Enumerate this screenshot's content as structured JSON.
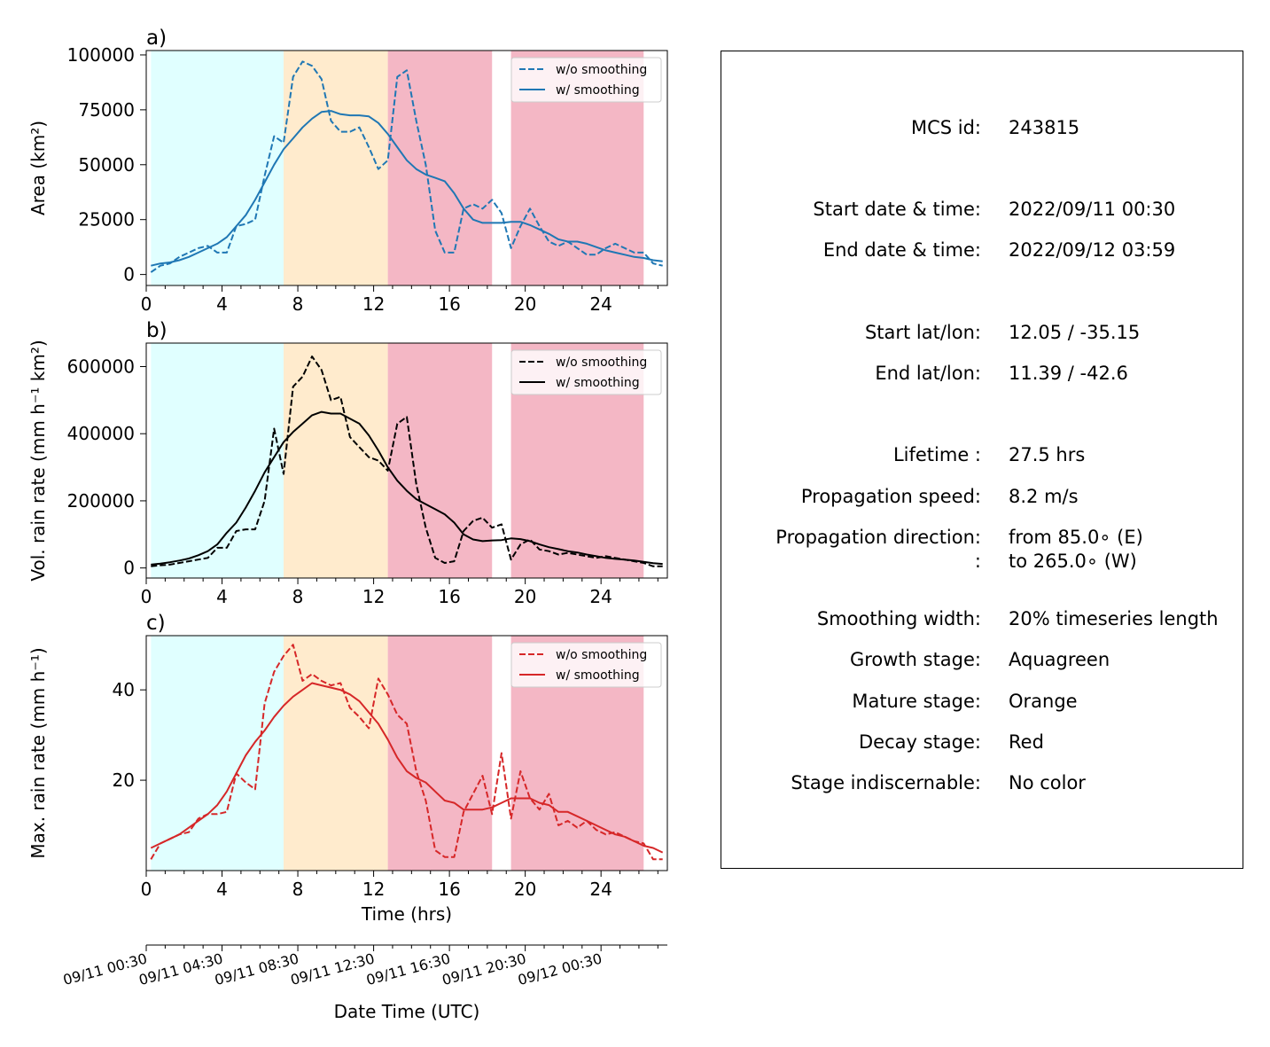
{
  "colors": {
    "growth": "#e0ffff",
    "mature": "#ffebcd",
    "decay": "#f4b7c5",
    "blue": "#1f77b4",
    "black": "#000000",
    "red": "#d62728"
  },
  "chart_data": [
    {
      "type": "line",
      "panel_label": "a)",
      "xlabel": "",
      "ylabel": "Area  (km²)",
      "xlim": [
        0,
        27.5
      ],
      "ylim": [
        -5000,
        102000
      ],
      "xticks": [
        0,
        4,
        8,
        12,
        16,
        20,
        24
      ],
      "yticks": [
        0,
        25000,
        50000,
        75000,
        100000
      ],
      "stages": [
        {
          "stage": "growth",
          "x0": 0.25,
          "x1": 7.25
        },
        {
          "stage": "mature",
          "x0": 7.25,
          "x1": 12.75
        },
        {
          "stage": "decay",
          "x0": 12.75,
          "x1": 18.25
        },
        {
          "stage": "decay",
          "x0": 19.25,
          "x1": 26.25
        }
      ],
      "legend_loc": "upper right",
      "series": [
        {
          "name": "w/o smoothing",
          "style": "dashed",
          "color": "#1f77b4",
          "x": [
            0.25,
            0.75,
            1.25,
            1.75,
            2.25,
            2.75,
            3.25,
            3.75,
            4.25,
            4.75,
            5.25,
            5.75,
            6.25,
            6.75,
            7.25,
            7.75,
            8.25,
            8.75,
            9.25,
            9.75,
            10.25,
            10.75,
            11.25,
            11.75,
            12.25,
            12.75,
            13.25,
            13.75,
            14.25,
            14.75,
            15.25,
            15.75,
            16.25,
            16.75,
            17.25,
            17.75,
            18.25,
            18.75,
            19.25,
            19.75,
            20.25,
            20.75,
            21.25,
            21.75,
            22.25,
            22.75,
            23.25,
            23.75,
            24.25,
            24.75,
            25.25,
            25.75,
            26.25,
            26.75,
            27.25
          ],
          "y": [
            1000,
            4000,
            5000,
            8000,
            10000,
            12000,
            13000,
            10000,
            10000,
            22000,
            23000,
            25000,
            45000,
            63000,
            60000,
            90000,
            97000,
            95000,
            89000,
            70000,
            65000,
            65000,
            67000,
            58000,
            48000,
            52000,
            90000,
            93000,
            70000,
            50000,
            20000,
            10000,
            10000,
            30000,
            32000,
            30000,
            34000,
            28000,
            12000,
            22000,
            30000,
            22000,
            15000,
            13000,
            15000,
            12000,
            9000,
            9000,
            12000,
            14000,
            12000,
            10000,
            10000,
            5000,
            4000
          ]
        },
        {
          "name": "w/ smoothing",
          "style": "solid",
          "color": "#1f77b4",
          "x": [
            0.25,
            0.75,
            1.25,
            1.75,
            2.25,
            2.75,
            3.25,
            3.75,
            4.25,
            4.75,
            5.25,
            5.75,
            6.25,
            6.75,
            7.25,
            7.75,
            8.25,
            8.75,
            9.25,
            9.75,
            10.25,
            10.75,
            11.25,
            11.75,
            12.25,
            12.75,
            13.25,
            13.75,
            14.25,
            14.75,
            15.25,
            15.75,
            16.25,
            16.75,
            17.25,
            17.75,
            18.25,
            18.75,
            19.25,
            19.75,
            20.25,
            20.75,
            21.25,
            21.75,
            22.25,
            22.75,
            23.25,
            23.75,
            24.25,
            24.75,
            25.25,
            25.75,
            26.25,
            26.75,
            27.25
          ],
          "y": [
            4000,
            5000,
            5500,
            6500,
            8000,
            10000,
            12000,
            14000,
            17000,
            22000,
            27000,
            34000,
            42000,
            50000,
            57000,
            62000,
            67000,
            71000,
            74000,
            74500,
            73000,
            72500,
            72500,
            72000,
            69000,
            64000,
            58000,
            52000,
            48000,
            45500,
            44000,
            42500,
            37000,
            30000,
            25000,
            23500,
            23500,
            23500,
            24000,
            24000,
            22500,
            20500,
            18500,
            16000,
            15000,
            15000,
            14000,
            12500,
            11000,
            10000,
            9000,
            8000,
            7500,
            6500,
            6000
          ]
        }
      ]
    },
    {
      "type": "line",
      "panel_label": "b)",
      "xlabel": "",
      "ylabel": "Vol. rain rate (mm h⁻¹ km²)",
      "xlim": [
        0,
        27.5
      ],
      "ylim": [
        -30000,
        670000
      ],
      "xticks": [
        0,
        4,
        8,
        12,
        16,
        20,
        24
      ],
      "yticks": [
        0,
        200000,
        400000,
        600000
      ],
      "stages": [
        {
          "stage": "growth",
          "x0": 0.25,
          "x1": 7.25
        },
        {
          "stage": "mature",
          "x0": 7.25,
          "x1": 12.75
        },
        {
          "stage": "decay",
          "x0": 12.75,
          "x1": 18.25
        },
        {
          "stage": "decay",
          "x0": 19.25,
          "x1": 26.25
        }
      ],
      "legend_loc": "upper right",
      "series": [
        {
          "name": "w/o smoothing",
          "style": "dashed",
          "color": "#000000",
          "x": [
            0.25,
            0.75,
            1.25,
            1.75,
            2.25,
            2.75,
            3.25,
            3.75,
            4.25,
            4.75,
            5.25,
            5.75,
            6.25,
            6.75,
            7.25,
            7.75,
            8.25,
            8.75,
            9.25,
            9.75,
            10.25,
            10.75,
            11.25,
            11.75,
            12.25,
            12.75,
            13.25,
            13.75,
            14.25,
            14.75,
            15.25,
            15.75,
            16.25,
            16.75,
            17.25,
            17.75,
            18.25,
            18.75,
            19.25,
            19.75,
            20.25,
            20.75,
            21.25,
            21.75,
            22.25,
            22.75,
            23.25,
            23.75,
            24.25,
            24.75,
            25.25,
            25.75,
            26.25,
            26.75,
            27.25
          ],
          "y": [
            5000,
            8000,
            10000,
            15000,
            20000,
            25000,
            30000,
            60000,
            60000,
            110000,
            115000,
            115000,
            200000,
            415000,
            280000,
            540000,
            570000,
            630000,
            590000,
            500000,
            510000,
            390000,
            360000,
            330000,
            320000,
            290000,
            430000,
            450000,
            250000,
            120000,
            30000,
            15000,
            20000,
            110000,
            140000,
            150000,
            120000,
            130000,
            25000,
            70000,
            85000,
            55000,
            50000,
            40000,
            45000,
            40000,
            35000,
            30000,
            35000,
            30000,
            25000,
            20000,
            15000,
            5000,
            5000
          ]
        },
        {
          "name": "w/ smoothing",
          "style": "solid",
          "color": "#000000",
          "x": [
            0.25,
            0.75,
            1.25,
            1.75,
            2.25,
            2.75,
            3.25,
            3.75,
            4.25,
            4.75,
            5.25,
            5.75,
            6.25,
            6.75,
            7.25,
            7.75,
            8.25,
            8.75,
            9.25,
            9.75,
            10.25,
            10.75,
            11.25,
            11.75,
            12.25,
            12.75,
            13.25,
            13.75,
            14.25,
            14.75,
            15.25,
            15.75,
            16.25,
            16.75,
            17.25,
            17.75,
            18.25,
            18.75,
            19.25,
            19.75,
            20.25,
            20.75,
            21.25,
            21.75,
            22.25,
            22.75,
            23.25,
            23.75,
            24.25,
            24.75,
            25.25,
            25.75,
            26.25,
            26.75,
            27.25
          ],
          "y": [
            10000,
            13000,
            17000,
            22000,
            28000,
            38000,
            50000,
            70000,
            105000,
            135000,
            180000,
            230000,
            285000,
            330000,
            375000,
            405000,
            430000,
            455000,
            465000,
            460000,
            460000,
            445000,
            430000,
            395000,
            350000,
            300000,
            260000,
            230000,
            205000,
            190000,
            175000,
            160000,
            135000,
            100000,
            85000,
            80000,
            82000,
            83000,
            88000,
            86000,
            80000,
            70000,
            62000,
            56000,
            50000,
            46000,
            40000,
            35000,
            30000,
            27000,
            25000,
            22000,
            18000,
            14000,
            12000
          ]
        }
      ]
    },
    {
      "type": "line",
      "panel_label": "c)",
      "xlabel": "Time (hrs)",
      "ylabel": "Max. rain rate  (mm h⁻¹)",
      "xlim": [
        0,
        27.5
      ],
      "ylim": [
        0,
        52
      ],
      "xticks": [
        0,
        4,
        8,
        12,
        16,
        20,
        24
      ],
      "yticks": [
        20,
        40
      ],
      "stages": [
        {
          "stage": "growth",
          "x0": 0.25,
          "x1": 7.25
        },
        {
          "stage": "mature",
          "x0": 7.25,
          "x1": 12.75
        },
        {
          "stage": "decay",
          "x0": 12.75,
          "x1": 18.25
        },
        {
          "stage": "decay",
          "x0": 19.25,
          "x1": 26.25
        }
      ],
      "legend_loc": "upper right",
      "series": [
        {
          "name": "w/o smoothing",
          "style": "dashed",
          "color": "#d62728",
          "x": [
            0.25,
            0.75,
            1.25,
            1.75,
            2.25,
            2.75,
            3.25,
            3.75,
            4.25,
            4.75,
            5.25,
            5.75,
            6.25,
            6.75,
            7.25,
            7.75,
            8.25,
            8.75,
            9.25,
            9.75,
            10.25,
            10.75,
            11.25,
            11.75,
            12.25,
            12.75,
            13.25,
            13.75,
            14.25,
            14.75,
            15.25,
            15.75,
            16.25,
            16.75,
            17.25,
            17.75,
            18.25,
            18.75,
            19.25,
            19.75,
            20.25,
            20.75,
            21.25,
            21.75,
            22.25,
            22.75,
            23.25,
            23.75,
            24.25,
            24.75,
            25.25,
            25.75,
            26.25,
            26.75,
            27.25
          ],
          "y": [
            2.5,
            6,
            7,
            8,
            8.5,
            11.5,
            12.5,
            12.5,
            13,
            21.5,
            19.5,
            18,
            37,
            44,
            47.5,
            50,
            42,
            43.5,
            42,
            41,
            41.5,
            36,
            34,
            31.5,
            42.5,
            39,
            34.5,
            32.5,
            22,
            15.5,
            4.5,
            3,
            3,
            13,
            17,
            21,
            12.5,
            26,
            11.5,
            22,
            16,
            13.5,
            17,
            10,
            11,
            9.5,
            11,
            9,
            8,
            8.5,
            7.5,
            6.5,
            6,
            2.5,
            2.5
          ]
        },
        {
          "name": "w/ smoothing",
          "style": "solid",
          "color": "#d62728",
          "x": [
            0.25,
            0.75,
            1.25,
            1.75,
            2.25,
            2.75,
            3.25,
            3.75,
            4.25,
            4.75,
            5.25,
            5.75,
            6.25,
            6.75,
            7.25,
            7.75,
            8.25,
            8.75,
            9.25,
            9.75,
            10.25,
            10.75,
            11.25,
            11.75,
            12.25,
            12.75,
            13.25,
            13.75,
            14.25,
            14.75,
            15.25,
            15.75,
            16.25,
            16.75,
            17.25,
            17.75,
            18.25,
            18.75,
            19.25,
            19.75,
            20.25,
            20.75,
            21.25,
            21.75,
            22.25,
            22.75,
            23.25,
            23.75,
            24.25,
            24.75,
            25.25,
            25.75,
            26.25,
            26.75,
            27.25
          ],
          "y": [
            5,
            6,
            7,
            8,
            9.5,
            11,
            12.5,
            14.5,
            17.5,
            21.5,
            25.5,
            28.5,
            31,
            34,
            36.5,
            38.5,
            40,
            41.5,
            41,
            40.5,
            40,
            39,
            37.5,
            35,
            32.5,
            29,
            25,
            22,
            20.5,
            19.5,
            17.5,
            15.5,
            15,
            13.5,
            13.5,
            13.5,
            14,
            15,
            16,
            16,
            16,
            15,
            14.5,
            13,
            13,
            12,
            11,
            10,
            9,
            8,
            7.5,
            6.5,
            5.5,
            5,
            4
          ]
        }
      ]
    }
  ],
  "date_axis": {
    "label": "Date Time (UTC)",
    "tick_labels": [
      "09/11 00:30",
      "09/11 04:30",
      "09/11 08:30",
      "09/11 12:30",
      "09/11 16:30",
      "09/11 20:30",
      "09/12 00:30"
    ]
  },
  "info": {
    "rows": [
      {
        "label": "MCS id:",
        "value": "243815"
      },
      {
        "label": "Start date & time:",
        "value": "2022/09/11 00:30"
      },
      {
        "label": "End date & time:",
        "value": "2022/09/12 03:59"
      },
      {
        "label": "Start lat/lon:",
        "value": "12.05 / -35.15"
      },
      {
        "label": "End lat/lon:",
        "value": "11.39 / -42.6"
      },
      {
        "label": "Lifetime :",
        "value": "27.5 hrs"
      },
      {
        "label": "Propagation speed:",
        "value": "8.2 m/s"
      },
      {
        "label": "Propagation direction:",
        "value": "from  85.0∘ (E)"
      },
      {
        "label": ":",
        "value": "to   265.0∘ (W)"
      },
      {
        "label": "Smoothing width:",
        "value": "20% timeseries length"
      },
      {
        "label": "Growth stage:",
        "value": "Aquagreen"
      },
      {
        "label": "Mature stage:",
        "value": "Orange"
      },
      {
        "label": "Decay stage:",
        "value": "Red"
      },
      {
        "label": "Stage indiscernable:",
        "value": "No color"
      }
    ]
  }
}
